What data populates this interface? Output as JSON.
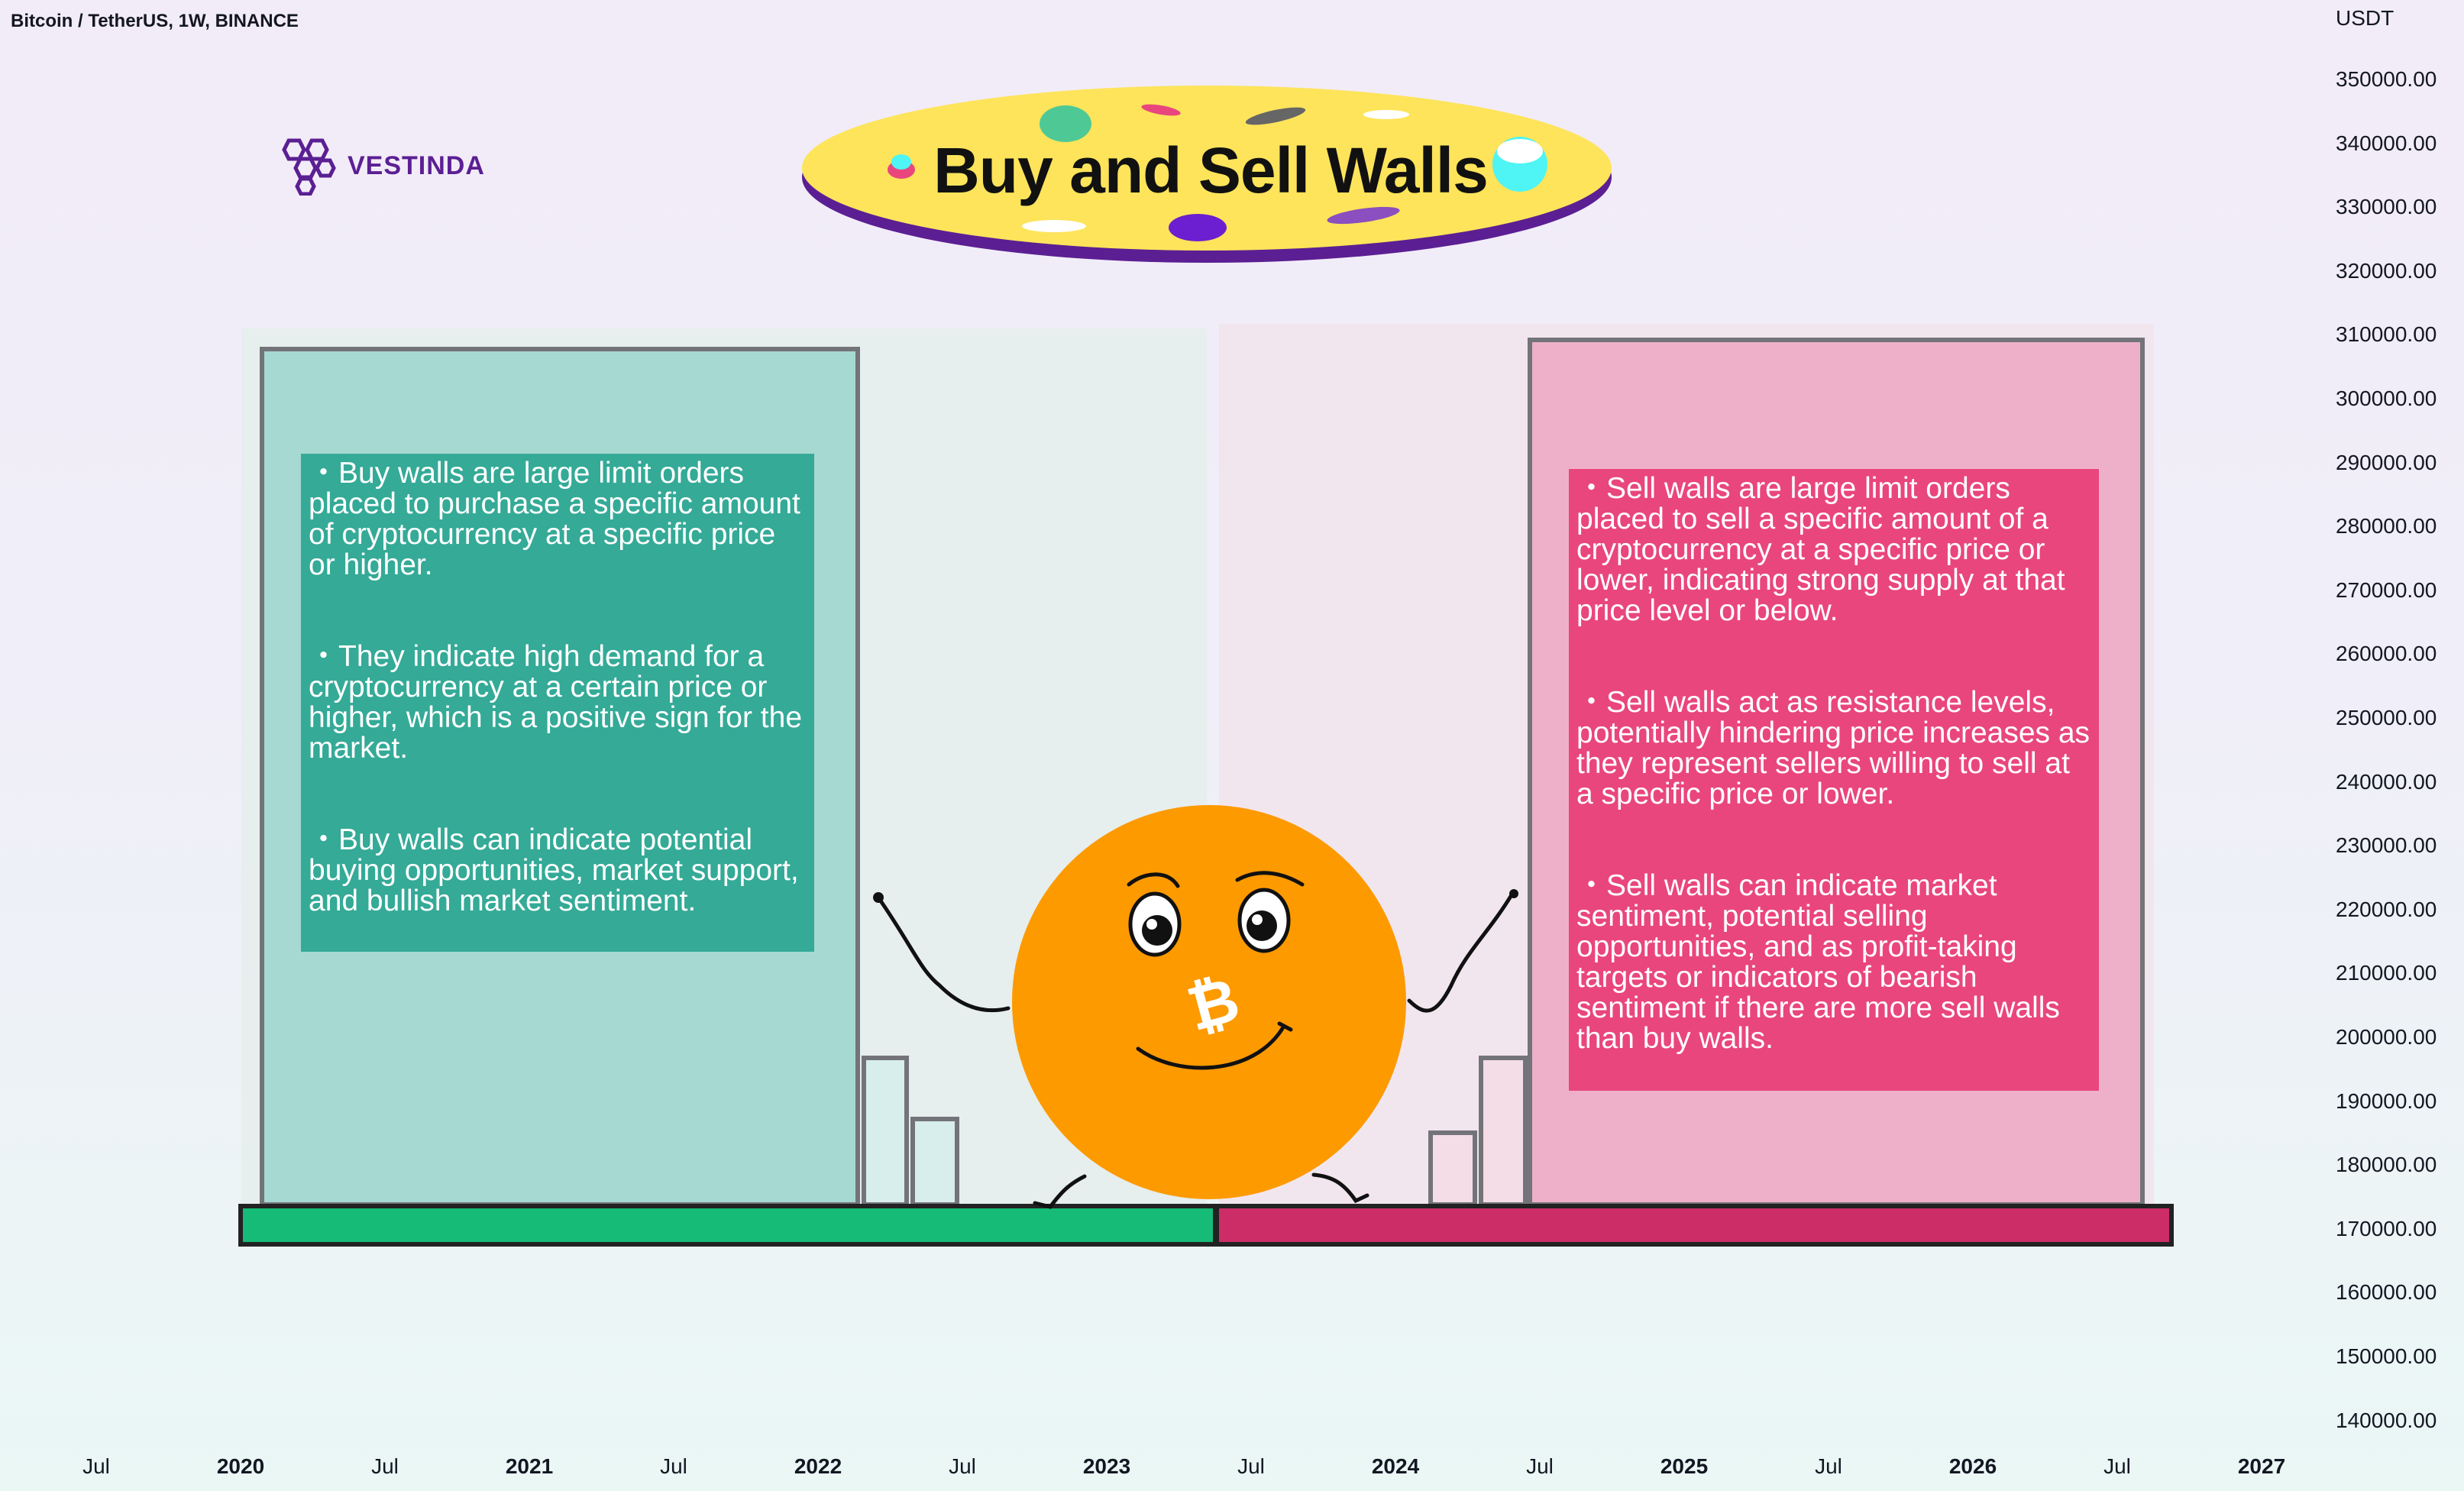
{
  "header": {
    "symbol_label": "Bitcoin / TetherUS, 1W, BINANCE"
  },
  "brand": {
    "logo_text": "VESTINDA",
    "logo_icon": "hexagon-cluster-logo-icon",
    "color": "#5b1f93"
  },
  "title": {
    "text": "Buy and Sell Walls",
    "badge_color": "#fde45b",
    "shadow_color": "#5b1f93"
  },
  "price_axis": {
    "currency": "USDT",
    "ticks": [
      "350000.00",
      "340000.00",
      "330000.00",
      "320000.00",
      "310000.00",
      "300000.00",
      "290000.00",
      "280000.00",
      "270000.00",
      "260000.00",
      "250000.00",
      "240000.00",
      "230000.00",
      "220000.00",
      "210000.00",
      "200000.00",
      "190000.00",
      "180000.00",
      "170000.00",
      "160000.00",
      "150000.00",
      "140000.00"
    ]
  },
  "time_axis": {
    "ticks": [
      {
        "label": "Jul",
        "bold": false
      },
      {
        "label": "2020",
        "bold": true
      },
      {
        "label": "Jul",
        "bold": false
      },
      {
        "label": "2021",
        "bold": true
      },
      {
        "label": "Jul",
        "bold": false
      },
      {
        "label": "2022",
        "bold": true
      },
      {
        "label": "Jul",
        "bold": false
      },
      {
        "label": "2023",
        "bold": true
      },
      {
        "label": "Jul",
        "bold": false
      },
      {
        "label": "2024",
        "bold": true
      },
      {
        "label": "Jul",
        "bold": false
      },
      {
        "label": "2025",
        "bold": true
      },
      {
        "label": "Jul",
        "bold": false
      },
      {
        "label": "2026",
        "bold": true
      },
      {
        "label": "Jul",
        "bold": false
      },
      {
        "label": "2027",
        "bold": true
      }
    ]
  },
  "buy_panel": {
    "color": "#34aa97",
    "floor_color": "#15bb77",
    "bullets": [
      "・Buy walls are large limit orders placed to purchase a specific amount of cryptocurrency at a specific price or higher.",
      "・They indicate high demand for a cryptocurrency at a certain price or higher, which is a positive sign for the market.",
      "・Buy walls can indicate potential buying opportunities, market support, and bullish market sentiment."
    ]
  },
  "sell_panel": {
    "color": "#e9467d",
    "floor_color": "#cc2d66",
    "bullets": [
      "・Sell walls are large limit orders placed to sell a specific amount of a cryptocurrency at a specific price or lower, indicating strong supply at that price level or below.",
      "・Sell walls act as resistance levels, potentially hindering price increases as they represent sellers willing to sell at a specific price or lower.",
      "・Sell walls can indicate market sentiment, potential selling opportunities, and as profit-taking targets or indicators of bearish sentiment if there are more sell walls than buy walls."
    ]
  },
  "mascot": {
    "icon": "bitcoin-coin-mascot-icon",
    "color": "#fd9a00"
  }
}
